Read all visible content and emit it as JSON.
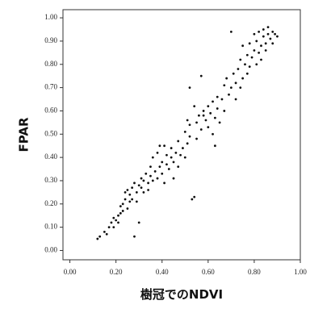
{
  "chart_data": {
    "type": "scatter",
    "xlabel": "樹冠でのNDVI",
    "ylabel": "FPAR",
    "color": "#111111",
    "xlim": [
      -0.03,
      1.0
    ],
    "ylim": [
      -0.04,
      1.035
    ],
    "xticks": [
      {
        "value": 0,
        "label": "0.00"
      },
      {
        "value": 0.2,
        "label": "0.20"
      },
      {
        "value": 0.4,
        "label": "0.40"
      },
      {
        "value": 0.6,
        "label": "0.60"
      },
      {
        "value": 0.8,
        "label": "0.80"
      },
      {
        "value": 1,
        "label": "1.00"
      }
    ],
    "yticks": [
      {
        "value": 0,
        "label": "0.00"
      },
      {
        "value": 0.1,
        "label": "0.10"
      },
      {
        "value": 0.2,
        "label": "0.20"
      },
      {
        "value": 0.3,
        "label": "0.30"
      },
      {
        "value": 0.4,
        "label": "0.40"
      },
      {
        "value": 0.5,
        "label": "0.50"
      },
      {
        "value": 0.6,
        "label": "0.60"
      },
      {
        "value": 0.7,
        "label": "0.70"
      },
      {
        "value": 0.8,
        "label": "0.80"
      },
      {
        "value": 0.9,
        "label": "0.90"
      },
      {
        "value": 1,
        "label": "1.00"
      }
    ],
    "x": [
      0.12,
      0.13,
      0.15,
      0.16,
      0.17,
      0.18,
      0.19,
      0.19,
      0.2,
      0.21,
      0.21,
      0.22,
      0.22,
      0.23,
      0.23,
      0.24,
      0.24,
      0.25,
      0.25,
      0.26,
      0.26,
      0.27,
      0.27,
      0.28,
      0.28,
      0.29,
      0.29,
      0.3,
      0.3,
      0.31,
      0.31,
      0.32,
      0.32,
      0.33,
      0.34,
      0.34,
      0.35,
      0.35,
      0.36,
      0.36,
      0.37,
      0.38,
      0.38,
      0.39,
      0.39,
      0.4,
      0.4,
      0.41,
      0.41,
      0.42,
      0.42,
      0.43,
      0.44,
      0.44,
      0.45,
      0.46,
      0.47,
      0.47,
      0.48,
      0.49,
      0.5,
      0.5,
      0.51,
      0.51,
      0.52,
      0.52,
      0.53,
      0.54,
      0.54,
      0.55,
      0.55,
      0.56,
      0.57,
      0.57,
      0.58,
      0.59,
      0.6,
      0.6,
      0.61,
      0.62,
      0.62,
      0.63,
      0.64,
      0.64,
      0.65,
      0.66,
      0.67,
      0.67,
      0.68,
      0.69,
      0.7,
      0.7,
      0.71,
      0.72,
      0.72,
      0.73,
      0.74,
      0.74,
      0.75,
      0.75,
      0.76,
      0.77,
      0.77,
      0.78,
      0.78,
      0.79,
      0.8,
      0.8,
      0.81,
      0.81,
      0.82,
      0.82,
      0.83,
      0.83,
      0.84,
      0.84,
      0.85,
      0.85,
      0.86,
      0.86,
      0.87,
      0.88,
      0.88,
      0.89,
      0.9,
      0.63,
      0.58,
      0.45,
      0.52
    ],
    "y": [
      0.05,
      0.06,
      0.08,
      0.07,
      0.1,
      0.12,
      0.14,
      0.1,
      0.13,
      0.15,
      0.12,
      0.16,
      0.19,
      0.17,
      0.2,
      0.22,
      0.25,
      0.18,
      0.26,
      0.21,
      0.24,
      0.27,
      0.22,
      0.06,
      0.29,
      0.25,
      0.21,
      0.12,
      0.28,
      0.27,
      0.31,
      0.25,
      0.3,
      0.33,
      0.29,
      0.26,
      0.32,
      0.36,
      0.4,
      0.3,
      0.34,
      0.42,
      0.31,
      0.45,
      0.36,
      0.33,
      0.38,
      0.45,
      0.29,
      0.37,
      0.41,
      0.35,
      0.4,
      0.44,
      0.38,
      0.42,
      0.36,
      0.47,
      0.41,
      0.44,
      0.4,
      0.51,
      0.56,
      0.46,
      0.49,
      0.54,
      0.22,
      0.23,
      0.62,
      0.55,
      0.48,
      0.58,
      0.52,
      0.75,
      0.6,
      0.56,
      0.62,
      0.53,
      0.59,
      0.64,
      0.5,
      0.57,
      0.66,
      0.61,
      0.55,
      0.65,
      0.6,
      0.71,
      0.74,
      0.67,
      0.94,
      0.7,
      0.76,
      0.72,
      0.65,
      0.78,
      0.82,
      0.7,
      0.74,
      0.88,
      0.8,
      0.84,
      0.76,
      0.89,
      0.79,
      0.83,
      0.86,
      0.93,
      0.8,
      0.9,
      0.85,
      0.94,
      0.88,
      0.82,
      0.92,
      0.95,
      0.89,
      0.86,
      0.93,
      0.96,
      0.91,
      0.94,
      0.89,
      0.93,
      0.92,
      0.45,
      0.58,
      0.31,
      0.7
    ]
  }
}
